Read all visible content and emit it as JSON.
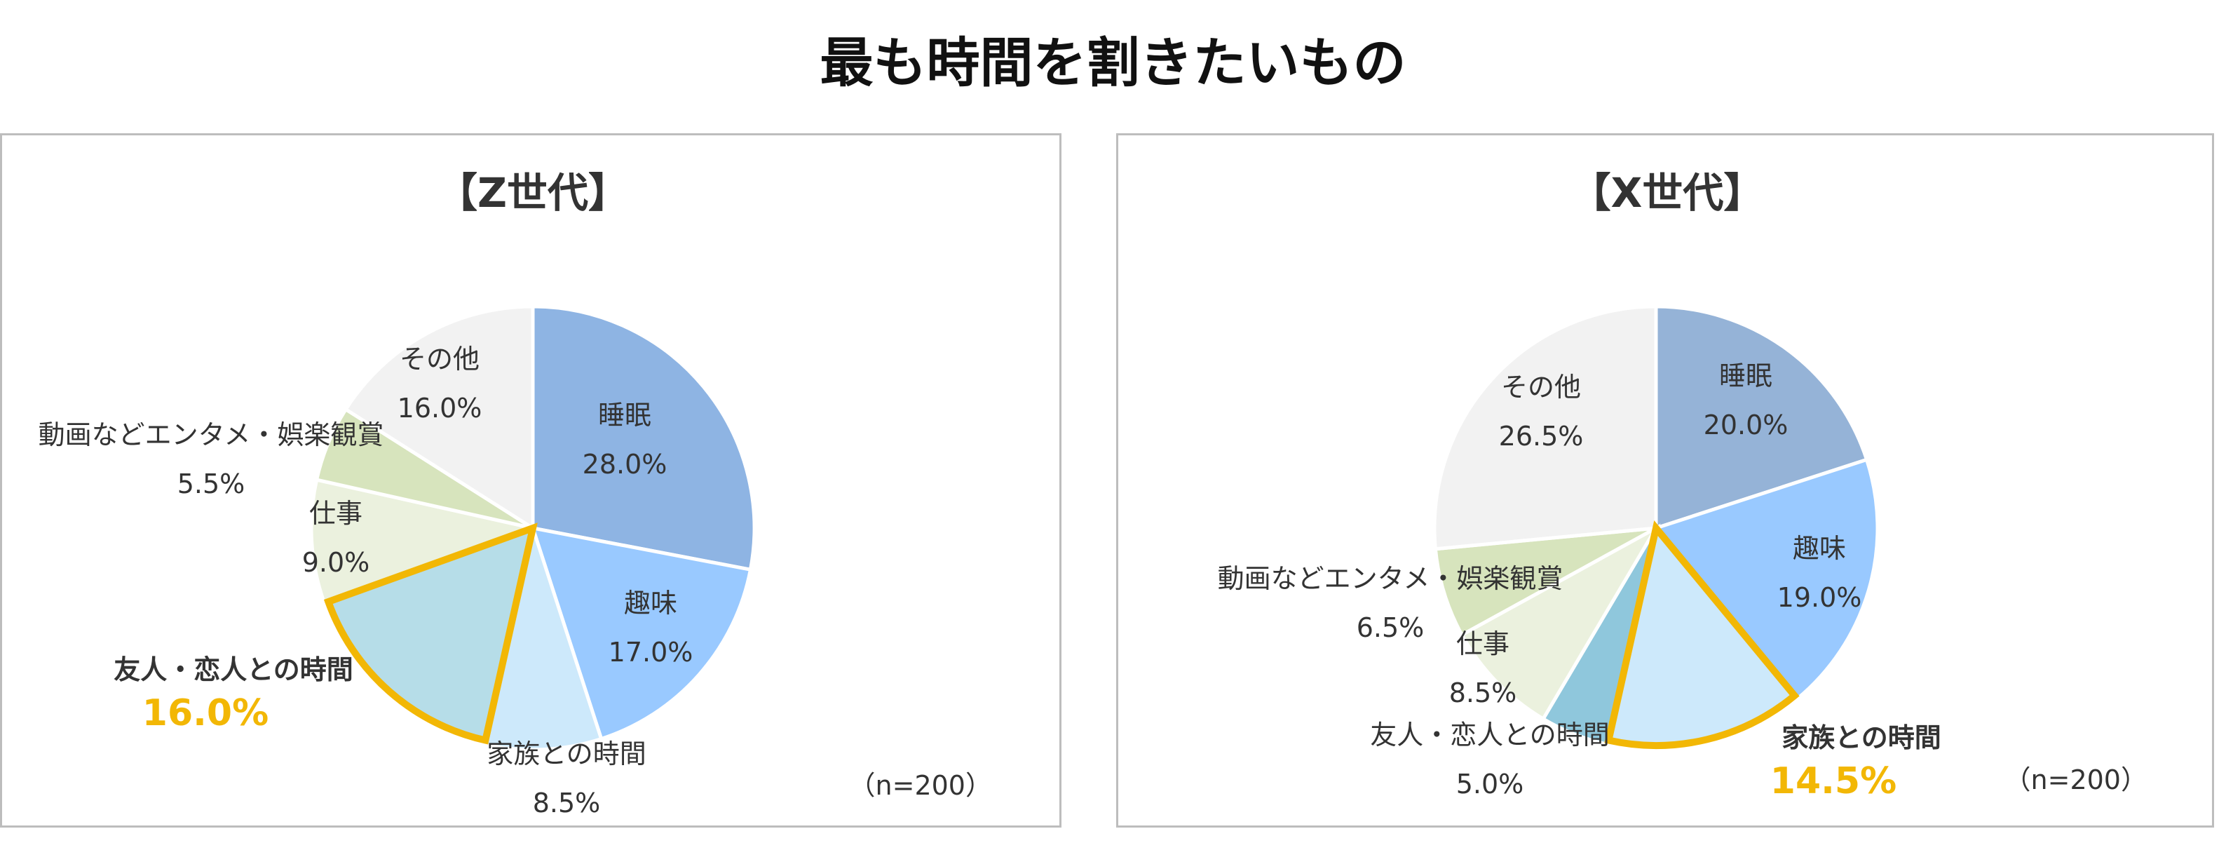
{
  "title": "最も時間を割きたいもの",
  "colors": {
    "sleep": "#8eb4e3",
    "hobby": "#99c9ff",
    "family": "#cde9fb",
    "friends": "#b6dde8",
    "friends_x": "#8fc7dc",
    "work": "#ebf1de",
    "media": "#d7e4bd",
    "other": "#f2f2f2",
    "highlight": "#f2b705"
  },
  "chart_data": [
    {
      "type": "pie",
      "title": "【Z世代】",
      "note": "（n=200）",
      "slices": [
        {
          "label": "睡眠",
          "value": 28.0,
          "display": "28.0%",
          "color": "#8eb4e3",
          "highlight": false
        },
        {
          "label": "趣味",
          "value": 17.0,
          "display": "17.0%",
          "color": "#99c9ff",
          "highlight": false
        },
        {
          "label": "家族との時間",
          "value": 8.5,
          "display": "8.5%",
          "color": "#cde9fb",
          "highlight": false
        },
        {
          "label": "友人・恋人との時間",
          "value": 16.0,
          "display": "16.0%",
          "color": "#b6dde8",
          "highlight": true
        },
        {
          "label": "仕事",
          "value": 9.0,
          "display": "9.0%",
          "color": "#ebf1de",
          "highlight": false
        },
        {
          "label": "動画などエンタメ・娯楽観賞",
          "value": 5.5,
          "display": "5.5%",
          "color": "#d7e4bd",
          "highlight": false
        },
        {
          "label": "その他",
          "value": 16.0,
          "display": "16.0%",
          "color": "#f2f2f2",
          "highlight": false
        }
      ]
    },
    {
      "type": "pie",
      "title": "【X世代】",
      "note": "（n=200）",
      "slices": [
        {
          "label": "睡眠",
          "value": 20.0,
          "display": "20.0%",
          "color": "#95b3d7",
          "highlight": false
        },
        {
          "label": "趣味",
          "value": 19.0,
          "display": "19.0%",
          "color": "#99c9ff",
          "highlight": false
        },
        {
          "label": "家族との時間",
          "value": 14.5,
          "display": "14.5%",
          "color": "#cde9fb",
          "highlight": true
        },
        {
          "label": "友人・恋人との時間",
          "value": 5.0,
          "display": "5.0%",
          "color": "#8fc7dc",
          "highlight": false
        },
        {
          "label": "仕事",
          "value": 8.5,
          "display": "8.5%",
          "color": "#ebf1de",
          "highlight": false
        },
        {
          "label": "動画などエンタメ・娯楽観賞",
          "value": 6.5,
          "display": "6.5%",
          "color": "#d7e4bd",
          "highlight": false
        },
        {
          "label": "その他",
          "value": 26.5,
          "display": "26.5%",
          "color": "#f2f2f2",
          "highlight": false
        }
      ]
    }
  ]
}
